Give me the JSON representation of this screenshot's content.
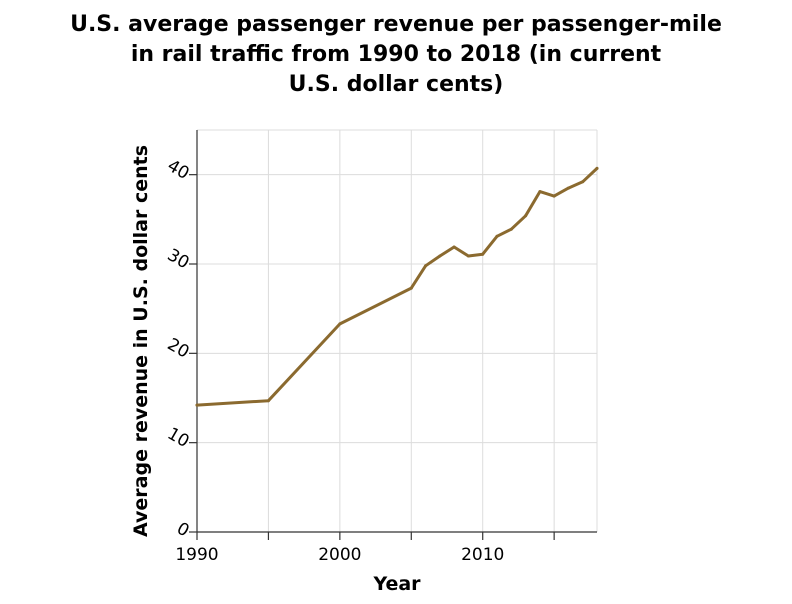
{
  "chart_data": {
    "type": "line",
    "title": "U.S. average passenger revenue per passenger-mile\nin rail traffic from 1990 to 2018 (in current\nU.S. dollar cents)",
    "xlabel": "Year",
    "ylabel": "Average revenue in U.S. dollar cents",
    "xlim": [
      1990,
      2018
    ],
    "ylim": [
      0,
      45
    ],
    "x_ticks": [
      1990,
      1995,
      2000,
      2005,
      2010,
      2015
    ],
    "x_tick_labels": [
      "1990",
      "",
      "2000",
      "",
      "2010",
      ""
    ],
    "y_ticks": [
      0,
      10,
      20,
      30,
      40
    ],
    "y_tick_labels": [
      "0",
      "10",
      "20",
      "30",
      "40"
    ],
    "grid": true,
    "legend": "none",
    "line_color": "#8b6a2f",
    "series": [
      {
        "x": [
          1990,
          1995,
          2000,
          2005,
          2006,
          2007,
          2008,
          2009,
          2010,
          2011,
          2012,
          2013,
          2014,
          2015,
          2016,
          2017,
          2018
        ],
        "values": [
          14.2,
          14.7,
          23.3,
          27.3,
          29.8,
          30.9,
          31.9,
          30.9,
          31.1,
          33.1,
          33.9,
          35.4,
          38.1,
          37.6,
          38.5,
          39.2,
          40.7
        ]
      }
    ]
  }
}
